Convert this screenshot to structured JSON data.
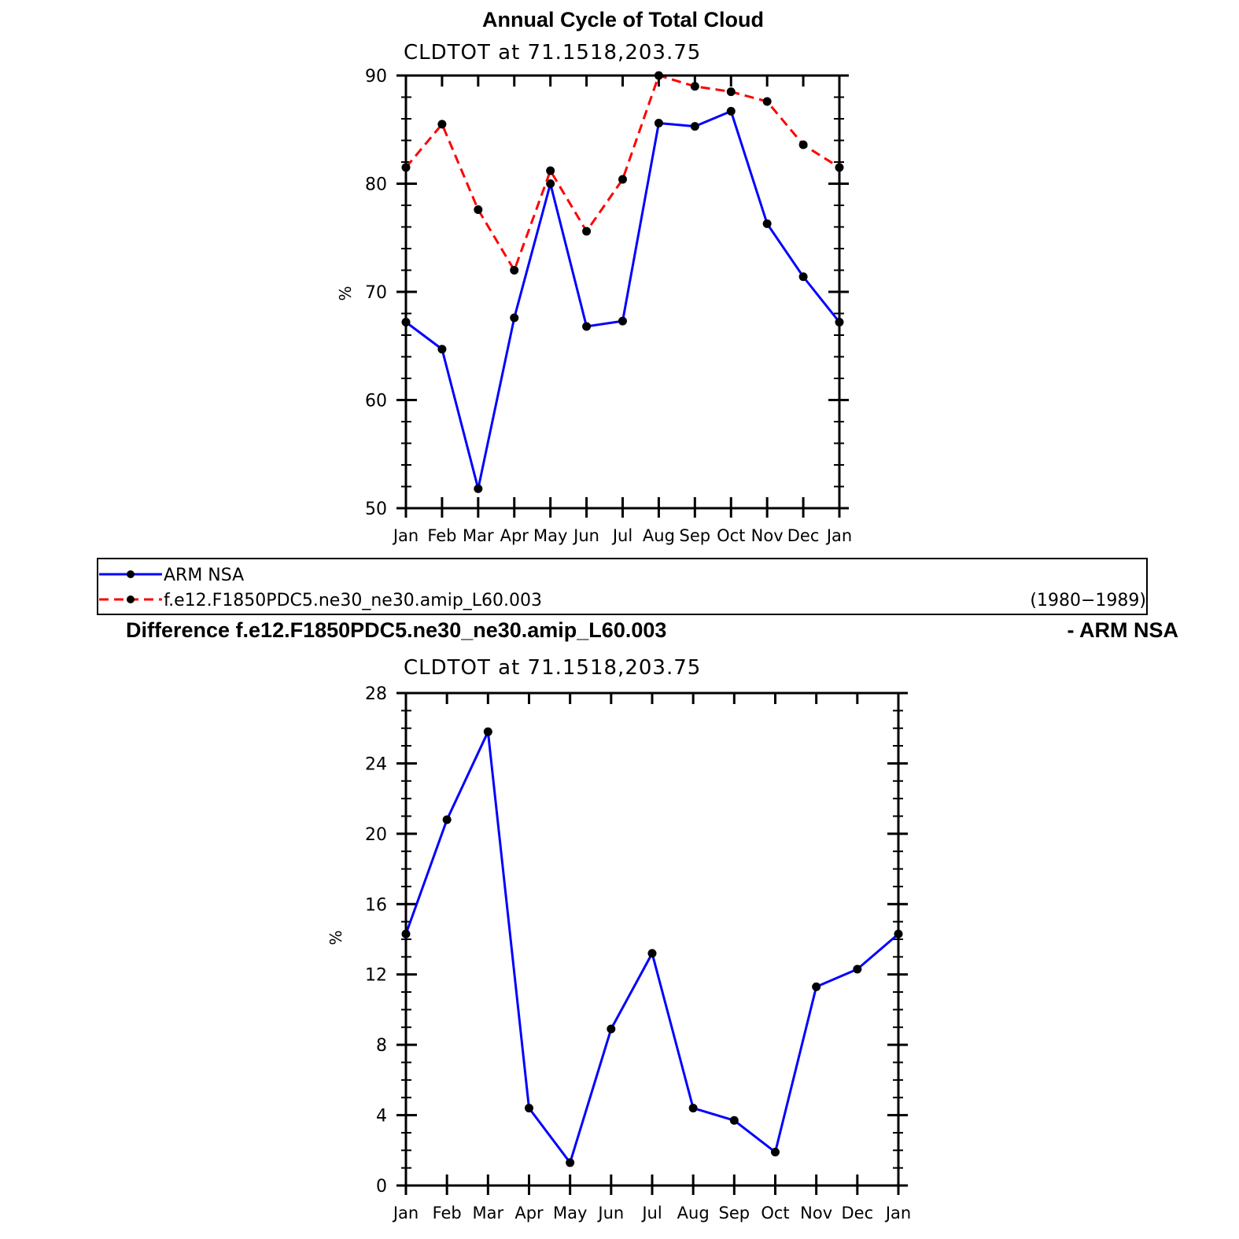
{
  "chart_data": [
    {
      "type": "line",
      "title": "Annual Cycle of Total Cloud",
      "subtitle": "CLDTOT at 71.1518,203.75",
      "ylabel": "%",
      "categories": [
        "Jan",
        "Feb",
        "Mar",
        "Apr",
        "May",
        "Jun",
        "Jul",
        "Aug",
        "Sep",
        "Oct",
        "Nov",
        "Dec",
        "Jan"
      ],
      "ylim": [
        50,
        90
      ],
      "yticks": [
        50,
        60,
        70,
        80,
        90
      ],
      "series": [
        {
          "name": "ARM NSA",
          "color": "#0000ff",
          "dash": "solid",
          "values": [
            67.2,
            64.7,
            51.8,
            67.6,
            80.0,
            66.8,
            67.3,
            85.6,
            85.3,
            86.7,
            76.3,
            71.4,
            67.2
          ]
        },
        {
          "name": "f.e12.F1850PDC5.ne30_ne30.amip_L60.003",
          "color": "#ff0000",
          "dash": "dashed",
          "values": [
            81.5,
            85.5,
            77.6,
            72.0,
            81.2,
            75.6,
            80.4,
            90.0,
            89.0,
            88.5,
            87.6,
            83.6,
            81.5
          ]
        }
      ]
    },
    {
      "type": "line",
      "title_left": "Difference f.e12.F1850PDC5.ne30_ne30.amip_L60.003",
      "title_right": "- ARM NSA",
      "subtitle": "CLDTOT at 71.1518,203.75",
      "ylabel": "%",
      "categories": [
        "Jan",
        "Feb",
        "Mar",
        "Apr",
        "May",
        "Jun",
        "Jul",
        "Aug",
        "Sep",
        "Oct",
        "Nov",
        "Dec",
        "Jan"
      ],
      "ylim": [
        0,
        28
      ],
      "yticks": [
        0,
        4,
        8,
        12,
        16,
        20,
        24,
        28
      ],
      "series": [
        {
          "color": "#0000ff",
          "dash": "solid",
          "values": [
            14.3,
            20.8,
            25.8,
            4.4,
            1.3,
            8.9,
            13.2,
            4.4,
            3.7,
            1.9,
            11.3,
            12.3,
            14.3
          ]
        }
      ]
    }
  ],
  "legend": {
    "entries": [
      {
        "label": "ARM NSA",
        "color": "#0000ff",
        "dash": "solid"
      },
      {
        "label": "f.e12.F1850PDC5.ne30_ne30.amip_L60.003",
        "color": "#ff0000",
        "dash": "dashed"
      }
    ],
    "period": "(1980−1989)"
  }
}
